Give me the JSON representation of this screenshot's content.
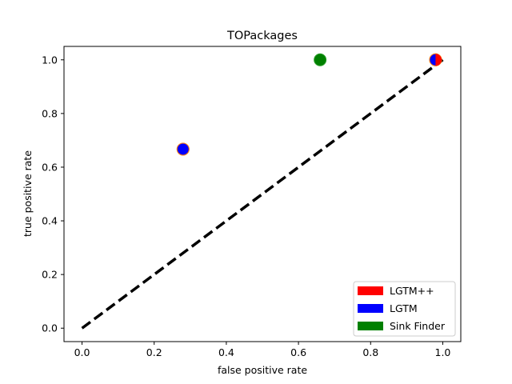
{
  "chart_data": {
    "type": "scatter",
    "title": "TOPackages",
    "xlabel": "false positive rate",
    "ylabel": "true positive rate",
    "xlim": [
      -0.05,
      1.05
    ],
    "ylim": [
      -0.05,
      1.05
    ],
    "xticks": [
      0.0,
      0.2,
      0.4,
      0.6,
      0.8,
      1.0
    ],
    "xtick_labels": [
      "0.0",
      "0.2",
      "0.4",
      "0.6",
      "0.8",
      "1.0"
    ],
    "yticks": [
      0.0,
      0.2,
      0.4,
      0.6,
      0.8,
      1.0
    ],
    "ytick_labels": [
      "0.0",
      "0.2",
      "0.4",
      "0.6",
      "0.8",
      "1.0"
    ],
    "grid": false,
    "legend_position": "bottom-right",
    "diagonal": {
      "x": [
        0.0,
        1.0
      ],
      "y": [
        0.0,
        1.0
      ],
      "color": "#000000",
      "style": "dashed"
    },
    "series": [
      {
        "name": "LGTM++",
        "color": "#ff0000",
        "edge_color": "#ff7f0e",
        "x": [
          0.98,
          0.28
        ],
        "y": [
          1.0,
          0.667
        ]
      },
      {
        "name": "LGTM",
        "color": "#0000ff",
        "edge_color": "#ff7f0e",
        "x": [
          0.98,
          0.28
        ],
        "y": [
          1.0,
          0.667
        ]
      },
      {
        "name": "Sink Finder",
        "color": "#008000",
        "edge_color": "#2ca02c",
        "x": [
          0.66
        ],
        "y": [
          1.0
        ]
      }
    ],
    "marker_overlays": [
      {
        "series": "LGTM",
        "at_x": 0.98,
        "at_y": 1.0,
        "half": "left"
      }
    ]
  }
}
